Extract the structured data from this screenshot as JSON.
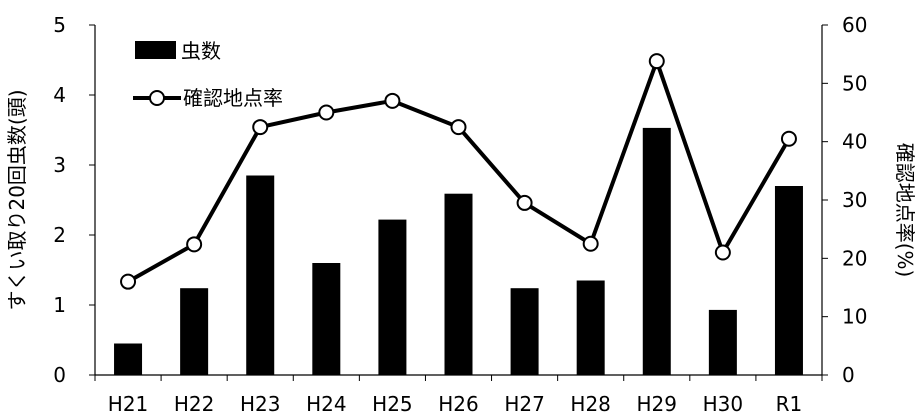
{
  "chart_data": {
    "type": "bar+line",
    "categories": [
      "H21",
      "H22",
      "H23",
      "H24",
      "H25",
      "H26",
      "H27",
      "H28",
      "H29",
      "H30",
      "R1"
    ],
    "series": [
      {
        "name": "虫数",
        "type": "bar",
        "axis": "left",
        "color": "#000000",
        "values": [
          0.45,
          1.24,
          2.85,
          1.6,
          2.22,
          2.59,
          1.24,
          1.35,
          3.53,
          0.93,
          2.7
        ]
      },
      {
        "name": "確認地点率",
        "type": "line",
        "axis": "right",
        "color": "#000000",
        "marker": "open-circle",
        "values": [
          16,
          22.4,
          42.5,
          45,
          47,
          42.5,
          29.5,
          22.5,
          53.8,
          21,
          40.5
        ]
      }
    ],
    "ylabel_left": "すくい取り20回虫数(頭)",
    "ylabel_right": "確認地点率(%)",
    "ylim_left": [
      0,
      5
    ],
    "ylim_right": [
      0,
      60
    ],
    "yticks_left": [
      "0",
      "1",
      "2",
      "3",
      "4",
      "5"
    ],
    "yticks_right": [
      "0",
      "10",
      "20",
      "30",
      "40",
      "50",
      "60"
    ],
    "grid": false,
    "legend_position": "top-left"
  }
}
